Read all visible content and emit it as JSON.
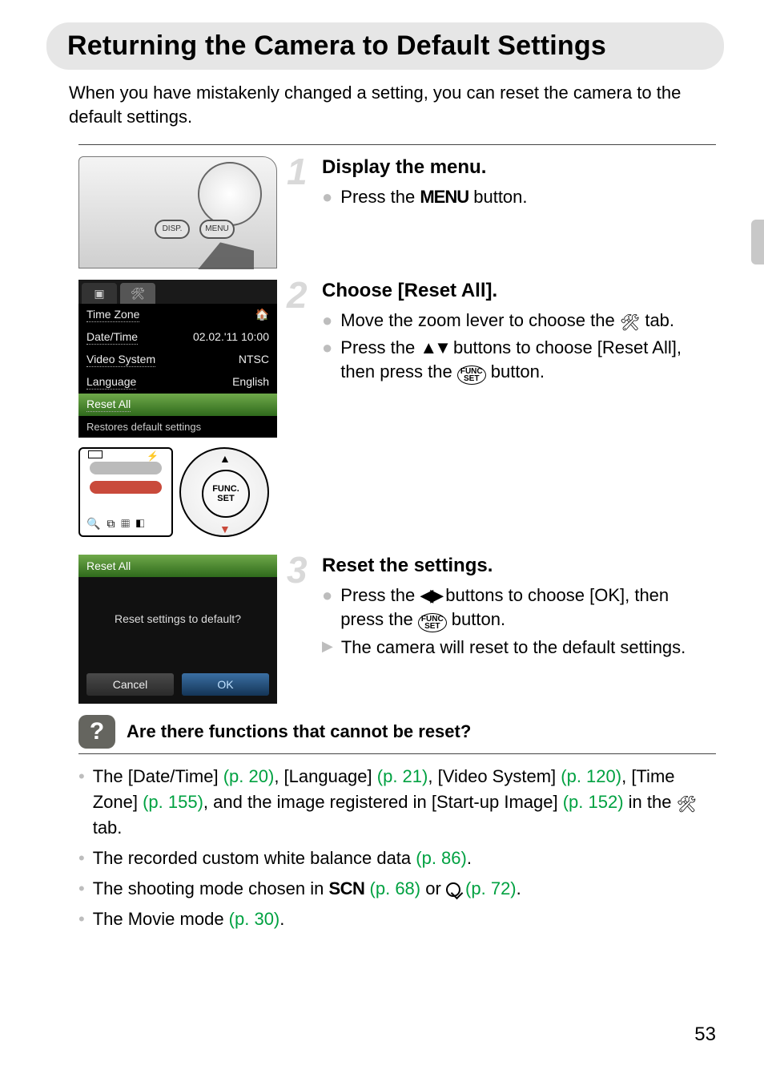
{
  "page": {
    "title": "Returning the Camera to Default Settings",
    "intro": "When you have mistakenly changed a setting, you can reset the camera to the default settings.",
    "number": "53"
  },
  "steps": [
    {
      "num": "1",
      "title": "Display the menu.",
      "bullets": [
        {
          "marker": "dot",
          "pre": "Press the ",
          "icon": "menu-word",
          "icon_text": "MENU",
          "post": " button."
        }
      ],
      "illustration": "camera"
    },
    {
      "num": "2",
      "title": "Choose [Reset All].",
      "bullets": [
        {
          "marker": "dot",
          "pre": "Move the zoom lever to choose the ",
          "icon": "wrench",
          "post": " tab."
        },
        {
          "marker": "dot",
          "pre": "Press the ",
          "icon": "ud-arrows",
          "mid": " buttons to choose [Reset All], then press the ",
          "icon2": "funcset",
          "post": " button."
        }
      ],
      "illustration": "menu",
      "menu": {
        "tabs": {
          "camera": "▮",
          "tools": "🛠"
        },
        "items": [
          {
            "label": "Time Zone",
            "value": "🏠"
          },
          {
            "label": "Date/Time",
            "value": "02.02.'11 10:00"
          },
          {
            "label": "Video System",
            "value": "NTSC"
          },
          {
            "label": "Language",
            "value": "English"
          },
          {
            "label": "Reset All",
            "value": "",
            "selected": true
          }
        ],
        "footer": "Restores default settings"
      },
      "controls": {
        "wheel_label_top": "FUNC.",
        "wheel_label_bot": "SET"
      }
    },
    {
      "num": "3",
      "title": "Reset the settings.",
      "bullets": [
        {
          "marker": "dot",
          "pre": "Press the ",
          "icon": "lr-arrows",
          "mid": " buttons to choose [OK], then press the ",
          "icon2": "funcset",
          "post": " button."
        },
        {
          "marker": "arrow",
          "pre": "The camera will reset to the default settings."
        }
      ],
      "illustration": "reset",
      "reset_dialog": {
        "header": "Reset All",
        "question": "Reset settings to default?",
        "cancel": "Cancel",
        "ok": "OK"
      }
    }
  ],
  "faq": {
    "title": "Are there functions that cannot be reset?",
    "items": [
      {
        "segments": [
          {
            "t": "The [Date/Time] "
          },
          {
            "t": "(p. 20)",
            "link": true
          },
          {
            "t": ", [Language] "
          },
          {
            "t": "(p. 21)",
            "link": true
          },
          {
            "t": ", [Video System] "
          },
          {
            "t": "(p. 120)",
            "link": true
          },
          {
            "t": ", [Time Zone] "
          },
          {
            "t": "(p. 155)",
            "link": true
          },
          {
            "t": ", and the image registered in [Start-up Image] "
          },
          {
            "t": "(p. 152)",
            "link": true
          },
          {
            "t": " in the "
          },
          {
            "icon": "wrench"
          },
          {
            "t": " tab."
          }
        ]
      },
      {
        "segments": [
          {
            "t": "The recorded custom white balance data "
          },
          {
            "t": "(p. 86)",
            "link": true
          },
          {
            "t": "."
          }
        ]
      },
      {
        "segments": [
          {
            "t": "The shooting mode chosen in "
          },
          {
            "icon": "scn",
            "t": "SCN"
          },
          {
            "t": " "
          },
          {
            "t": "(p. 68)",
            "link": true
          },
          {
            "t": " or "
          },
          {
            "icon": "creative"
          },
          {
            "t": " "
          },
          {
            "t": "(p. 72)",
            "link": true
          },
          {
            "t": "."
          }
        ]
      },
      {
        "segments": [
          {
            "t": "The Movie mode "
          },
          {
            "t": "(p. 30)",
            "link": true
          },
          {
            "t": "."
          }
        ]
      }
    ]
  },
  "colors": {
    "title_bg": "#e6e6e6",
    "step_num": "#d9d9d9",
    "bullet_gray": "#bdbdbd",
    "link_green": "#00a141",
    "menu_sel_top": "#6fa94a",
    "menu_sel_bot": "#2f6a1c",
    "ok_sel_top": "#3b6fa3",
    "ok_sel_bot": "#143556",
    "faq_badge": "#65655f"
  }
}
